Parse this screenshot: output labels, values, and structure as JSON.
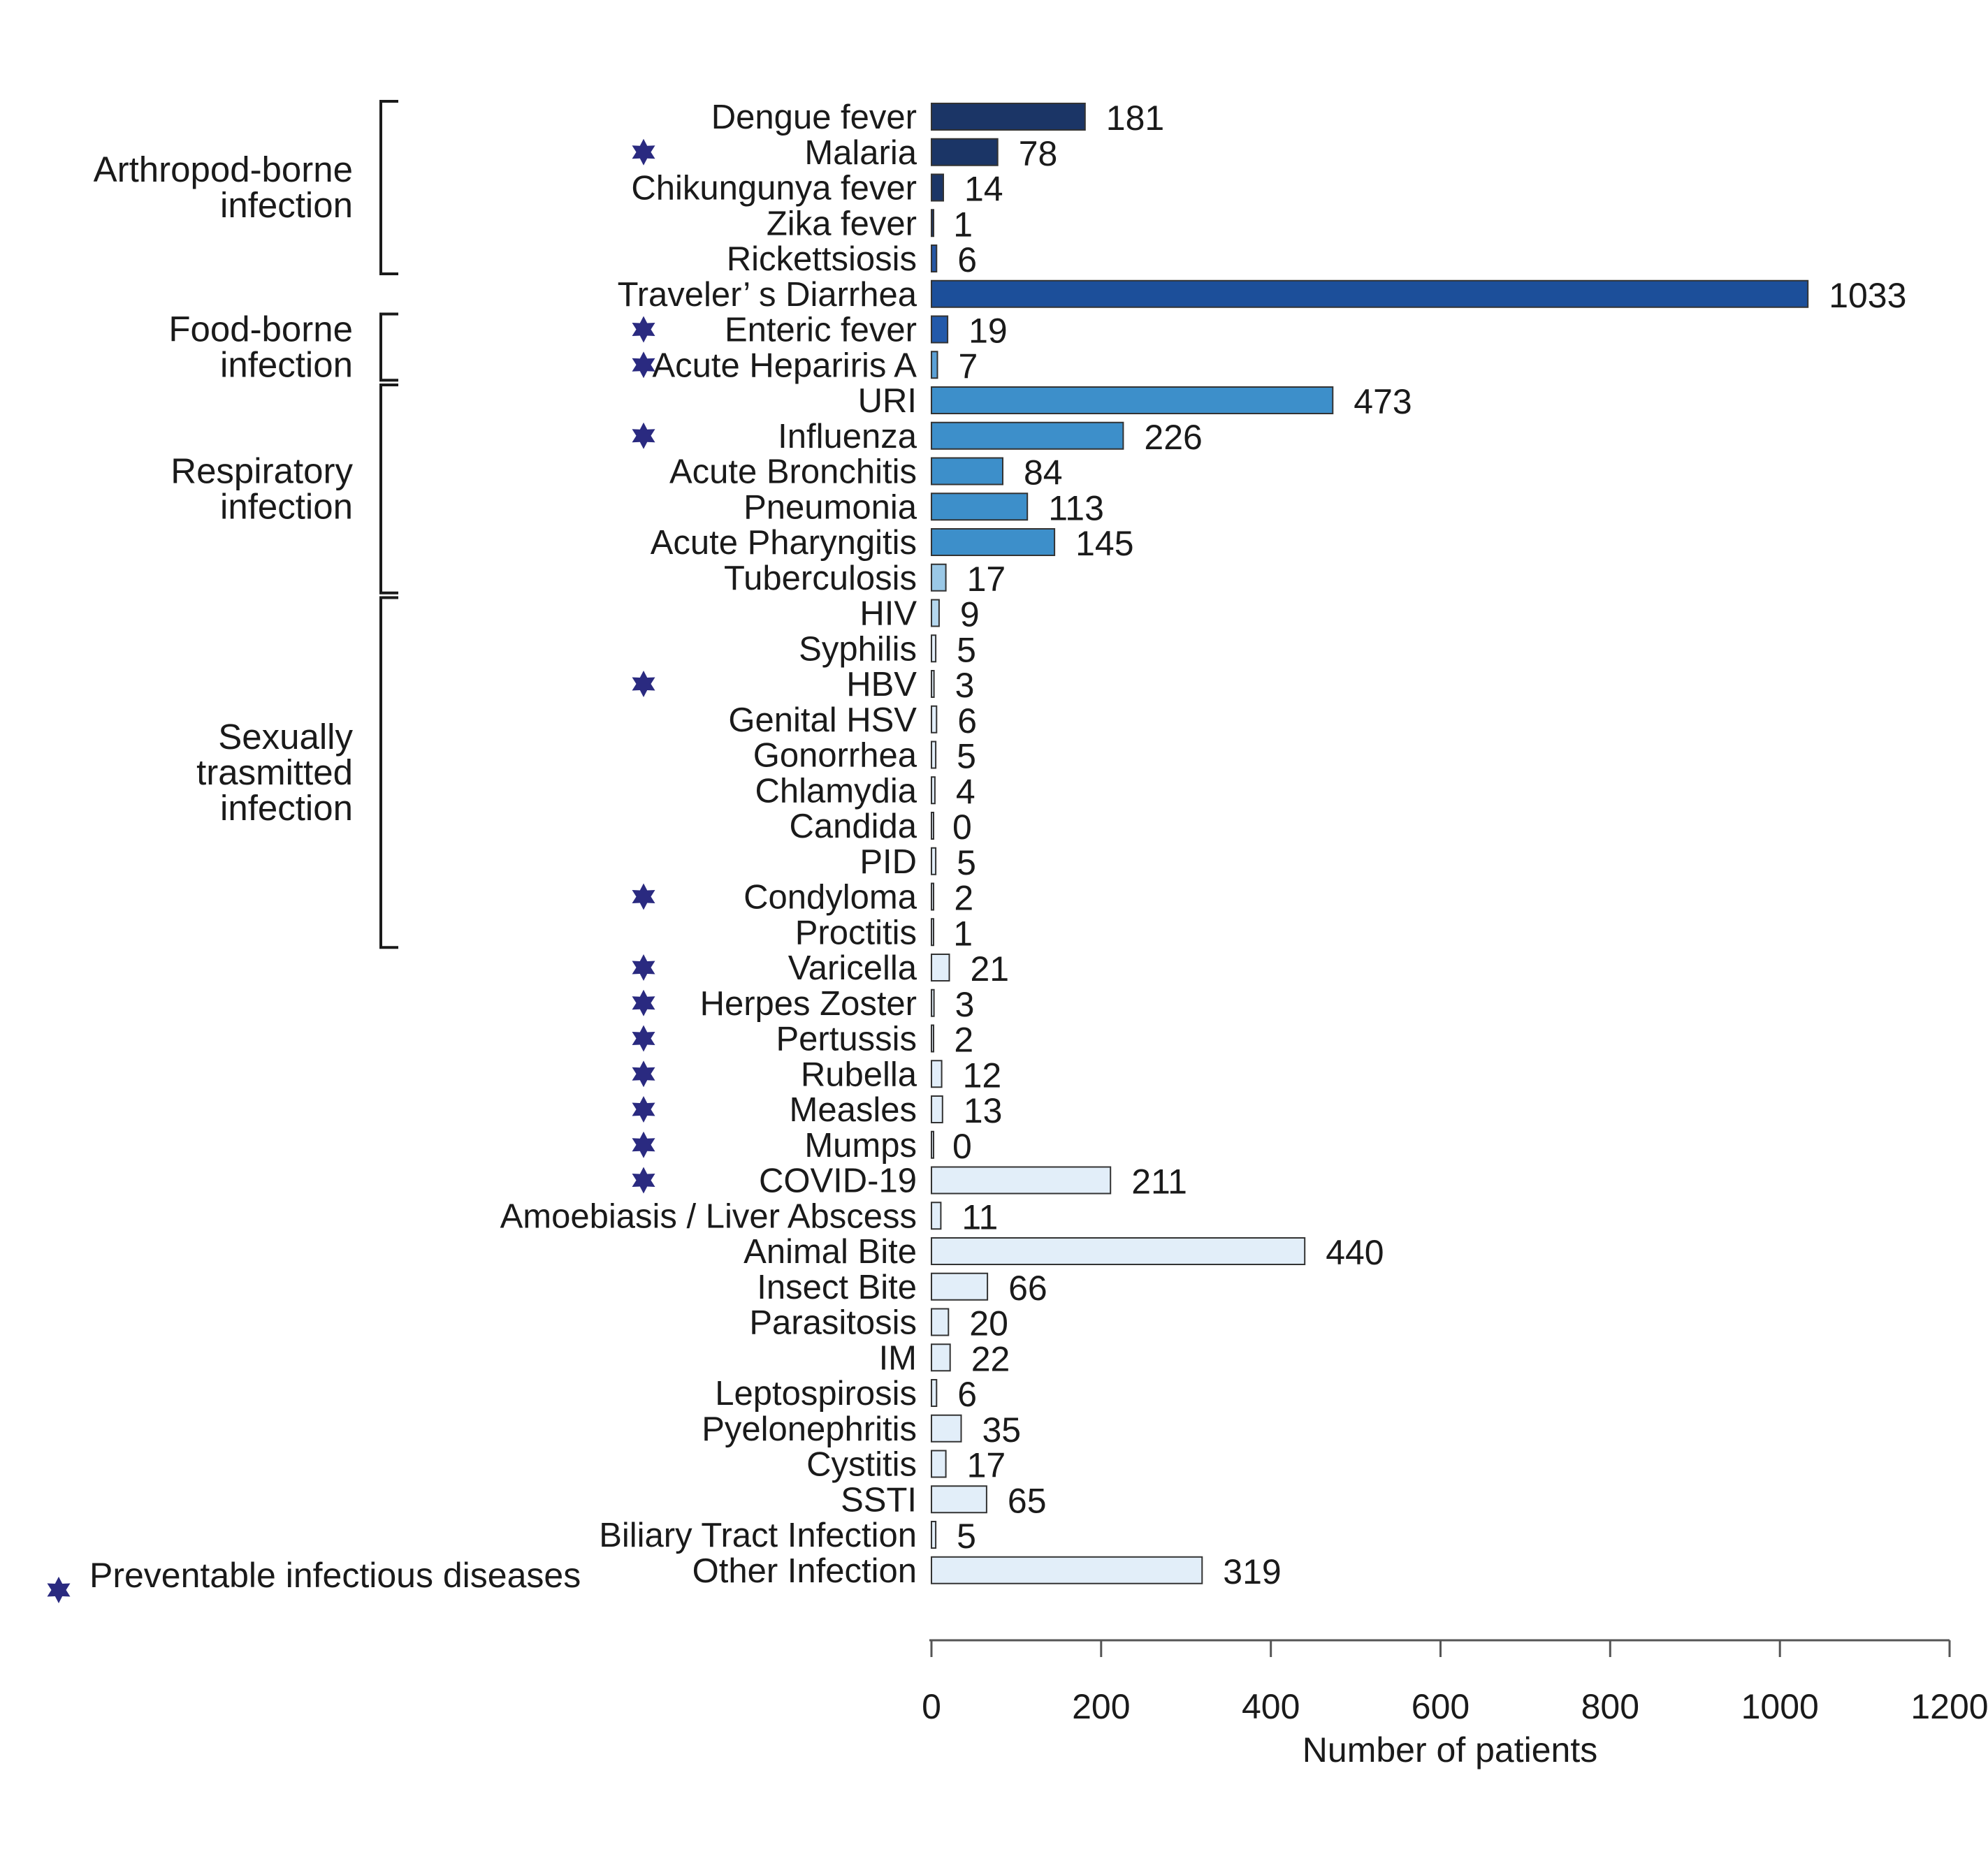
{
  "chart_data": {
    "type": "bar",
    "orientation": "horizontal",
    "xlabel": "Number of patients",
    "xlim": [
      0,
      1200
    ],
    "xticks": [
      "0",
      "200",
      "400",
      "600",
      "800",
      "1000",
      "1200"
    ],
    "grid": false,
    "categories": [
      "Dengue fever",
      "Malaria",
      "Chikungunya fever",
      "Zika fever",
      "Rickettsiosis",
      "Traveler’ s Diarrhea",
      "Enteric fever",
      "Acute Hepariris A",
      "URI",
      "Influenza",
      "Acute Bronchitis",
      "Pneumonia",
      "Acute Pharyngitis",
      "Tuberculosis",
      "HIV",
      "Syphilis",
      "HBV",
      "Genital HSV",
      "Gonorrhea",
      "Chlamydia",
      "Candida",
      "PID",
      "Condyloma",
      "Proctitis",
      "Varicella",
      "Herpes Zoster",
      "Pertussis",
      "Rubella",
      "Measles",
      "Mumps",
      "COVID-19",
      "Amoebiasis / Liver Abscess",
      "Animal Bite",
      "Insect Bite",
      "Parasitosis",
      "IM",
      "Leptospirosis",
      "Pyelonephritis",
      "Cystitis",
      "SSTI",
      "Biliary Tract Infection",
      "Other Infection"
    ],
    "values": [
      181,
      78,
      14,
      1,
      6,
      1033,
      19,
      7,
      473,
      226,
      84,
      113,
      145,
      17,
      9,
      5,
      3,
      6,
      5,
      4,
      0,
      5,
      2,
      1,
      21,
      3,
      2,
      12,
      13,
      0,
      211,
      11,
      440,
      66,
      20,
      22,
      6,
      35,
      17,
      65,
      5,
      319
    ],
    "value_labels": [
      "181",
      "78",
      "14",
      "1",
      "6",
      "1033",
      "19",
      "7",
      "473",
      "226",
      "84",
      "113",
      "145",
      "17",
      "9",
      "5",
      "3",
      "6",
      "5",
      "4",
      "0",
      "5",
      "2",
      "1",
      "21",
      "3",
      "2",
      "12",
      "13",
      "0",
      "211",
      "11",
      "440",
      "66",
      "20",
      "22",
      "6",
      "35",
      "17",
      "65",
      "5",
      "319"
    ],
    "bar_colors": [
      "#1b3566",
      "#1b3566",
      "#1b3566",
      "#1b3566",
      "#2556a3",
      "#1c4f9a",
      "#2259aa",
      "#5aa0d6",
      "#3d8fca",
      "#3d8fca",
      "#3d8fca",
      "#3d8fca",
      "#3d8fca",
      "#9ac8e6",
      "#b5d7ee",
      "#e2eef9",
      "#e2eef9",
      "#e2eef9",
      "#e2eef9",
      "#e2eef9",
      "#e2eef9",
      "#e2eef9",
      "#e2eef9",
      "#e2eef9",
      "#e2eef9",
      "#e2eef9",
      "#e2eef9",
      "#e2eef9",
      "#e2eef9",
      "#e2eef9",
      "#e2eef9",
      "#e2eef9",
      "#e2eef9",
      "#e2eef9",
      "#e2eef9",
      "#e2eef9",
      "#e2eef9",
      "#e2eef9",
      "#e2eef9",
      "#e2eef9",
      "#e2eef9",
      "#e2eef9"
    ],
    "preventable": [
      "Malaria",
      "Enteric fever",
      "Acute Hepariris A",
      "Influenza",
      "HBV",
      "Condyloma",
      "Varicella",
      "Herpes Zoster",
      "Pertussis",
      "Rubella",
      "Measles",
      "Mumps",
      "COVID-19"
    ],
    "groups": [
      {
        "lines": [
          "Arthropod-borne",
          "infection"
        ],
        "first": "Dengue fever",
        "last": "Rickettsiosis"
      },
      {
        "lines": [
          "Food-borne",
          "infection"
        ],
        "first": "Enteric fever",
        "last": "Acute Hepariris A"
      },
      {
        "lines": [
          "Respiratory",
          "infection"
        ],
        "first": "URI",
        "last": "Tuberculosis"
      },
      {
        "lines": [
          "Sexually",
          "trasmitted",
          "infection"
        ],
        "first": "HIV",
        "last": "Proctitis"
      }
    ],
    "legend": {
      "label": "Preventable infectious diseases",
      "position": "bottom-left"
    },
    "star_color": "#2a2a80"
  }
}
